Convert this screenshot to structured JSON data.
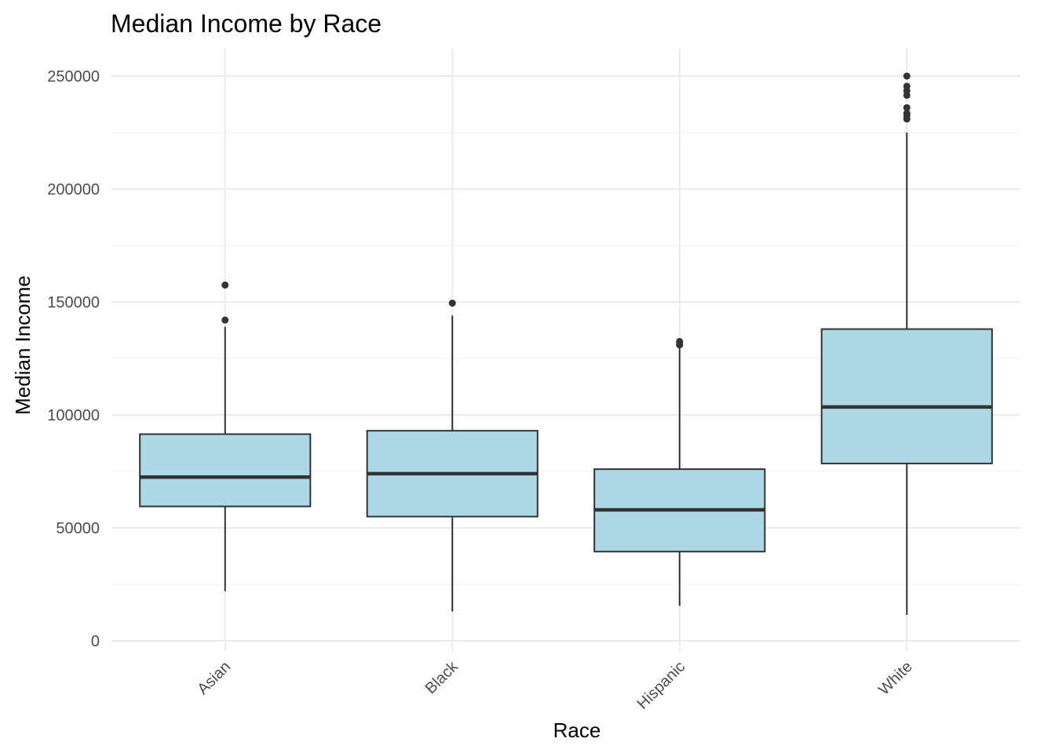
{
  "chart_data": {
    "type": "boxplot",
    "title": "Median Income by Race",
    "xlabel": "Race",
    "ylabel": "Median Income",
    "ylim": [
      -5000,
      262000
    ],
    "yticks": [
      0,
      50000,
      100000,
      150000,
      200000,
      250000
    ],
    "ytick_labels": [
      "0",
      "50000",
      "100000",
      "150000",
      "200000",
      "250000"
    ],
    "grid": true,
    "legend": "none",
    "box_fill": "#add8e6",
    "line_color": "#333333",
    "categories": [
      "Asian",
      "Black",
      "Hispanic",
      "White"
    ],
    "boxes": [
      {
        "category": "Asian",
        "whisker_low": 22000,
        "q1": 59500,
        "median": 72500,
        "q3": 91500,
        "whisker_high": 139000,
        "outliers": [
          142000,
          157500
        ]
      },
      {
        "category": "Black",
        "whisker_low": 13000,
        "q1": 55000,
        "median": 74000,
        "q3": 93000,
        "whisker_high": 144000,
        "outliers": [
          149500
        ]
      },
      {
        "category": "Hispanic",
        "whisker_low": 15500,
        "q1": 39500,
        "median": 58000,
        "q3": 76000,
        "whisker_high": 130000,
        "outliers": [
          131000,
          132000,
          132500
        ]
      },
      {
        "category": "White",
        "whisker_low": 11500,
        "q1": 78500,
        "median": 103500,
        "q3": 138000,
        "whisker_high": 225000,
        "outliers": [
          231000,
          232500,
          233500,
          236000,
          241500,
          243500,
          245500,
          250000
        ]
      }
    ]
  }
}
